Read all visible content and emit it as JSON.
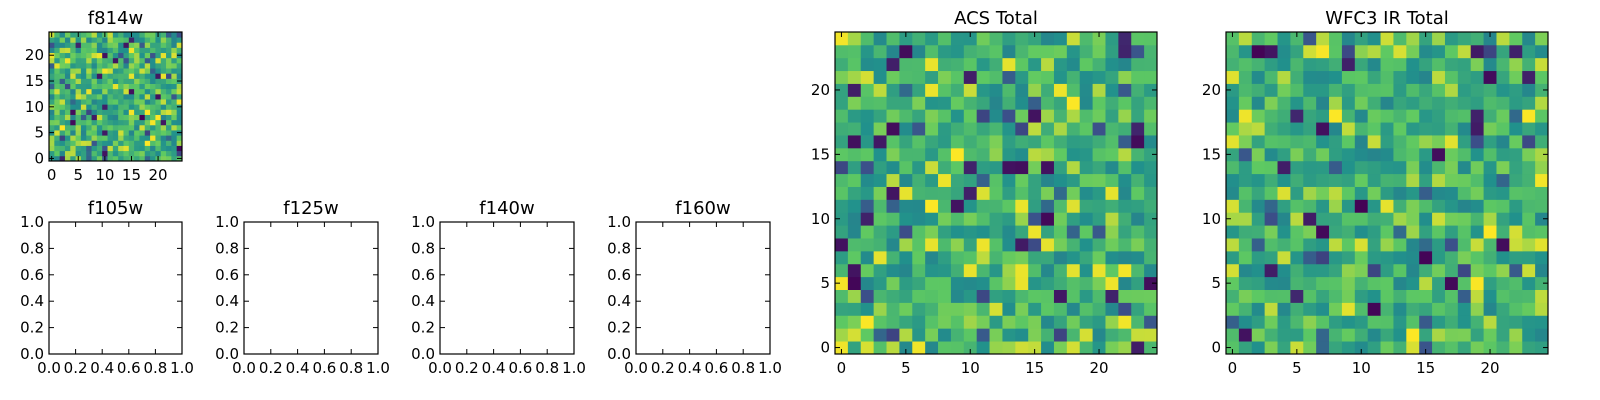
{
  "chart_data": [
    {
      "id": "f814w",
      "type": "heatmap",
      "title": "f814w",
      "grid_size": 25,
      "xticks": [
        0,
        5,
        10,
        15,
        20
      ],
      "yticks": [
        0,
        5,
        10,
        15,
        20
      ],
      "xlim": [
        -0.5,
        24.5
      ],
      "ylim": [
        -0.5,
        24.5
      ],
      "seed": 814,
      "value_range": [
        0.0,
        1.0
      ]
    },
    {
      "id": "f105w",
      "type": "scatter",
      "title": "f105w",
      "xticks": [
        "0.0",
        "0.2",
        "0.4",
        "0.6",
        "0.8",
        "1.0"
      ],
      "yticks": [
        "0.0",
        "0.2",
        "0.4",
        "0.6",
        "0.8",
        "1.0"
      ],
      "xlim": [
        0,
        1
      ],
      "ylim": [
        0,
        1
      ],
      "values": []
    },
    {
      "id": "f125w",
      "type": "scatter",
      "title": "f125w",
      "xticks": [
        "0.0",
        "0.2",
        "0.4",
        "0.6",
        "0.8",
        "1.0"
      ],
      "yticks": [
        "0.0",
        "0.2",
        "0.4",
        "0.6",
        "0.8",
        "1.0"
      ],
      "xlim": [
        0,
        1
      ],
      "ylim": [
        0,
        1
      ],
      "values": []
    },
    {
      "id": "f140w",
      "type": "scatter",
      "title": "f140w",
      "xticks": [
        "0.0",
        "0.2",
        "0.4",
        "0.6",
        "0.8",
        "1.0"
      ],
      "yticks": [
        "0.0",
        "0.2",
        "0.4",
        "0.6",
        "0.8",
        "1.0"
      ],
      "xlim": [
        0,
        1
      ],
      "ylim": [
        0,
        1
      ],
      "values": []
    },
    {
      "id": "f160w",
      "type": "scatter",
      "title": "f160w",
      "xticks": [
        "0.0",
        "0.2",
        "0.4",
        "0.6",
        "0.8",
        "1.0"
      ],
      "yticks": [
        "0.0",
        "0.2",
        "0.4",
        "0.6",
        "0.8",
        "1.0"
      ],
      "xlim": [
        0,
        1
      ],
      "ylim": [
        0,
        1
      ],
      "values": []
    },
    {
      "id": "acs_total",
      "type": "heatmap",
      "title": "ACS Total",
      "grid_size": 25,
      "xticks": [
        0,
        5,
        10,
        15,
        20
      ],
      "yticks": [
        0,
        5,
        10,
        15,
        20
      ],
      "xlim": [
        -0.5,
        24.5
      ],
      "ylim": [
        -0.5,
        24.5
      ],
      "seed": 1021,
      "value_range": [
        0.0,
        1.0
      ]
    },
    {
      "id": "wfc3_ir_total",
      "type": "heatmap",
      "title": "WFC3 IR Total",
      "grid_size": 25,
      "xticks": [
        0,
        5,
        10,
        15,
        20
      ],
      "yticks": [
        0,
        5,
        10,
        15,
        20
      ],
      "xlim": [
        -0.5,
        24.5
      ],
      "ylim": [
        -0.5,
        24.5
      ],
      "seed": 3301,
      "value_range": [
        0.0,
        1.0
      ]
    }
  ],
  "colormap": [
    "#440154",
    "#3b528b",
    "#21918c",
    "#5ec962",
    "#fde725"
  ]
}
